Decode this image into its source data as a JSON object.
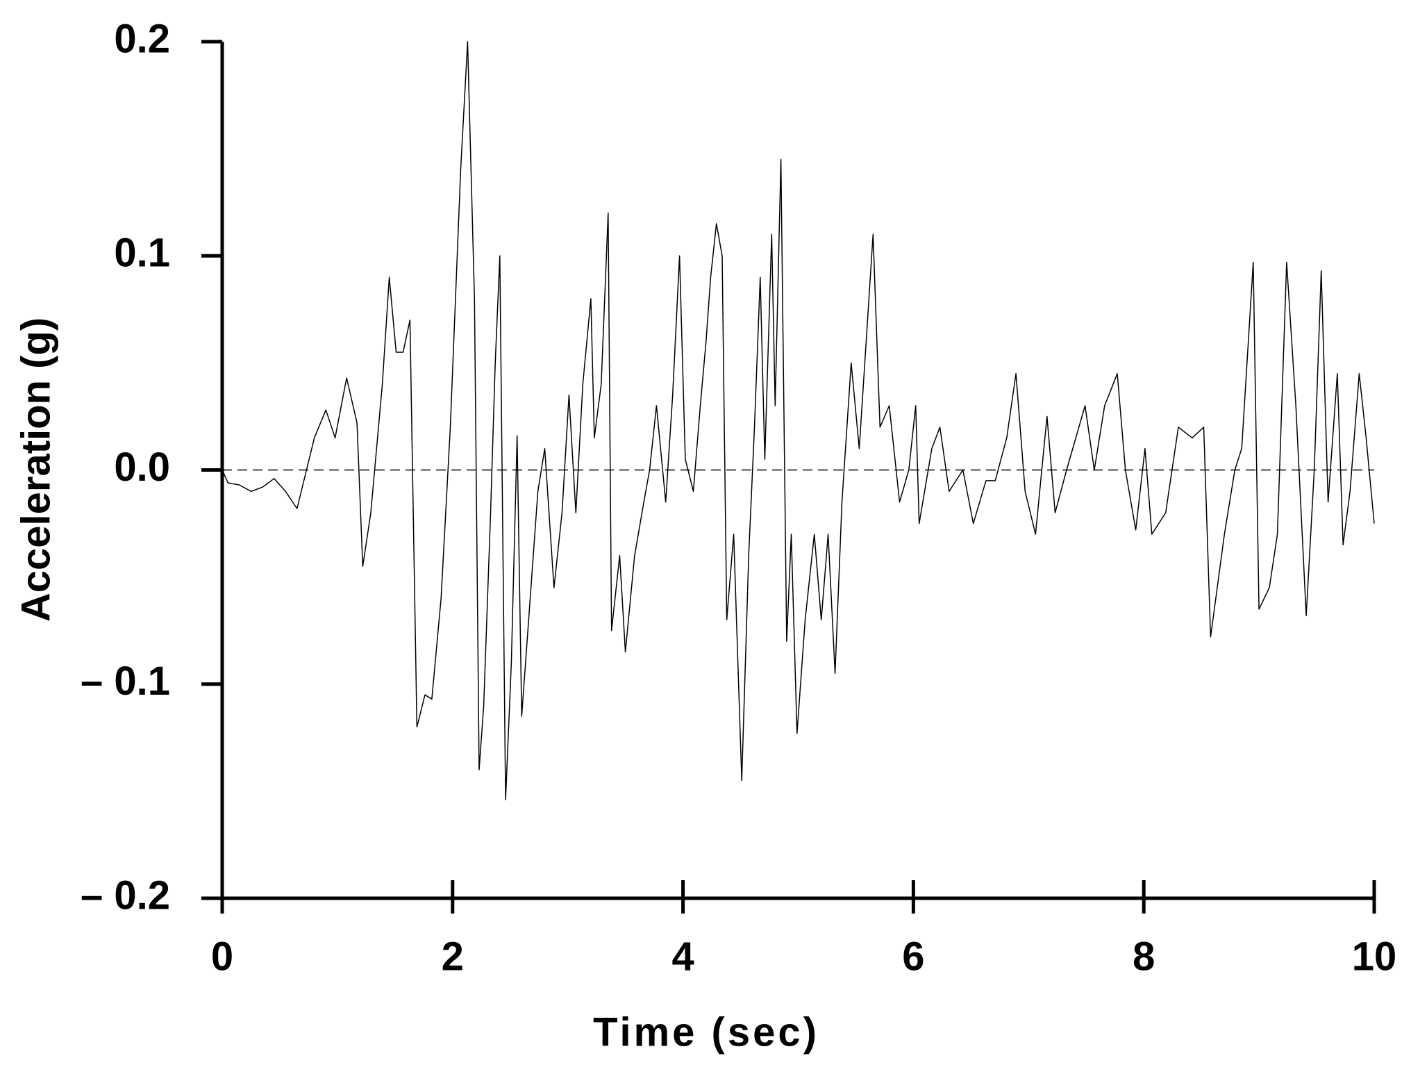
{
  "chart_data": {
    "type": "line",
    "x_label": "Time (sec)",
    "y_label": "Acceleration (g)",
    "x": [
      0,
      0.05,
      0.15,
      0.25,
      0.35,
      0.45,
      0.55,
      0.65,
      0.8,
      0.9,
      0.98,
      1.08,
      1.17,
      1.22,
      1.29,
      1.39,
      1.45,
      1.51,
      1.57,
      1.63,
      1.69,
      1.76,
      1.82,
      1.9,
      1.98,
      2.07,
      2.13,
      2.19,
      2.23,
      2.27,
      2.33,
      2.37,
      2.41,
      2.46,
      2.51,
      2.56,
      2.6,
      2.66,
      2.74,
      2.8,
      2.88,
      2.95,
      3.01,
      3.07,
      3.13,
      3.2,
      3.23,
      3.29,
      3.35,
      3.38,
      3.45,
      3.5,
      3.58,
      3.66,
      3.71,
      3.77,
      3.85,
      3.91,
      3.97,
      4.02,
      4.09,
      4.15,
      4.2,
      4.24,
      4.29,
      4.34,
      4.38,
      4.44,
      4.51,
      4.57,
      4.62,
      4.67,
      4.71,
      4.77,
      4.8,
      4.85,
      4.9,
      4.94,
      4.99,
      5.06,
      5.14,
      5.2,
      5.26,
      5.32,
      5.38,
      5.46,
      5.53,
      5.59,
      5.65,
      5.71,
      5.79,
      5.88,
      5.96,
      6.02,
      6.05,
      6.16,
      6.23,
      6.31,
      6.43,
      6.52,
      6.63,
      6.71,
      6.81,
      6.89,
      6.97,
      7.06,
      7.16,
      7.23,
      7.33,
      7.41,
      7.49,
      7.57,
      7.66,
      7.77,
      7.84,
      7.93,
      8.01,
      8.07,
      8.19,
      8.3,
      8.42,
      8.52,
      8.58,
      8.7,
      8.79,
      8.85,
      8.95,
      9.0,
      9.09,
      9.16,
      9.24,
      9.32,
      9.41,
      9.48,
      9.54,
      9.6,
      9.68,
      9.73,
      9.79,
      9.87,
      9.93,
      10.0
    ],
    "series": [
      {
        "color": "#000000",
        "values": [
          0,
          -0.006,
          -0.007,
          -0.01,
          -0.008,
          -0.004,
          -0.01,
          -0.018,
          0.015,
          0.028,
          0.015,
          0.043,
          0.022,
          -0.045,
          -0.02,
          0.04,
          0.09,
          0.055,
          0.055,
          0.07,
          -0.12,
          -0.105,
          -0.107,
          -0.06,
          0.02,
          0.14,
          0.2,
          0.08,
          -0.14,
          -0.11,
          -0.02,
          0.05,
          0.1,
          -0.154,
          -0.09,
          0.016,
          -0.115,
          -0.07,
          -0.01,
          0.01,
          -0.055,
          -0.02,
          0.035,
          -0.02,
          0.04,
          0.08,
          0.015,
          0.04,
          0.12,
          -0.075,
          -0.04,
          -0.085,
          -0.04,
          -0.015,
          0.0,
          0.03,
          -0.015,
          0.035,
          0.1,
          0.005,
          -0.01,
          0.03,
          0.06,
          0.09,
          0.115,
          0.1,
          -0.07,
          -0.03,
          -0.145,
          -0.04,
          0.02,
          0.09,
          0.005,
          0.11,
          0.03,
          0.145,
          -0.08,
          -0.03,
          -0.123,
          -0.07,
          -0.03,
          -0.07,
          -0.03,
          -0.095,
          -0.015,
          0.05,
          0.01,
          0.06,
          0.11,
          0.02,
          0.03,
          -0.015,
          0.0,
          0.03,
          -0.025,
          0.01,
          0.02,
          -0.01,
          0.0,
          -0.025,
          -0.005,
          -0.005,
          0.015,
          0.045,
          -0.01,
          -0.03,
          0.025,
          -0.02,
          0.0,
          0.015,
          0.03,
          0.0,
          0.03,
          0.045,
          0.0,
          -0.028,
          0.01,
          -0.03,
          -0.02,
          0.02,
          0.015,
          0.02,
          -0.078,
          -0.03,
          0.0,
          0.01,
          0.097,
          -0.065,
          -0.055,
          -0.03,
          0.097,
          0.03,
          -0.068,
          0.0,
          0.093,
          -0.015,
          0.045,
          -0.035,
          -0.01,
          0.045,
          0.015,
          -0.025
        ]
      }
    ],
    "xlim": [
      0,
      10
    ],
    "xticks": [
      0,
      2,
      4,
      6,
      8,
      10
    ],
    "ylim": [
      -0.2,
      0.2
    ],
    "yticks": [
      {
        "value": -0.2,
        "label": "– 0.2"
      },
      {
        "value": -0.1,
        "label": "– 0.1"
      },
      {
        "value": 0,
        "label": "0.0"
      },
      0.1,
      0.2
    ],
    "zero_line": true
  }
}
